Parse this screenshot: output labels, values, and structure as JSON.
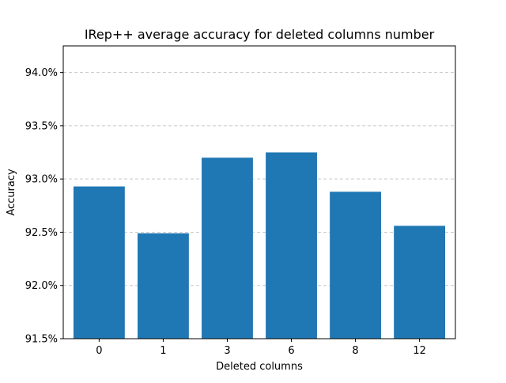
{
  "chart_data": {
    "type": "bar",
    "title": "IRep++ average accuracy for deleted columns number",
    "xlabel": "Deleted columns",
    "ylabel": "Accuracy",
    "categories": [
      "0",
      "1",
      "3",
      "6",
      "8",
      "12"
    ],
    "values": [
      0.9293,
      0.9249,
      0.932,
      0.9325,
      0.9288,
      0.9256
    ],
    "ylim": [
      0.915,
      0.9425
    ],
    "yticks": [
      0.915,
      0.92,
      0.925,
      0.93,
      0.935,
      0.94
    ],
    "ytick_labels": [
      "91.5%",
      "92.0%",
      "92.5%",
      "93.0%",
      "93.5%",
      "94.0%"
    ],
    "grid": "y-axis, dashed",
    "bar_color": "#1f77b4",
    "grid_color": "#c8c8c8"
  }
}
